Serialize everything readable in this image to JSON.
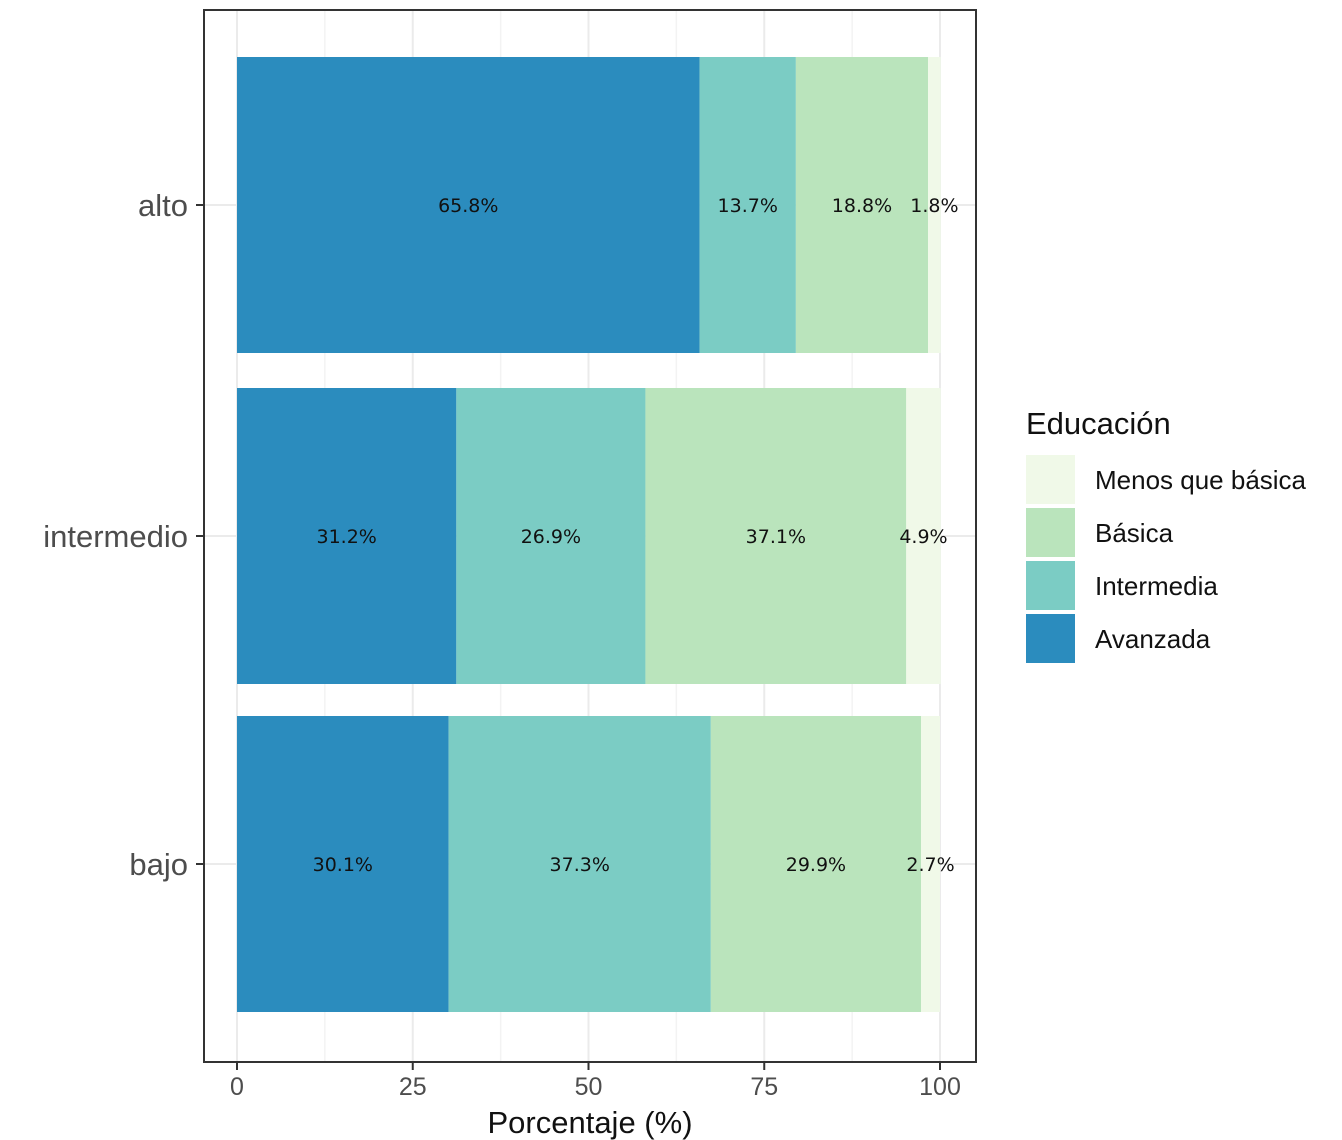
{
  "chart_data": {
    "type": "bar",
    "orientation": "horizontal",
    "stacked": true,
    "title": "",
    "xlabel": "Porcentaje (%)",
    "ylabel": "",
    "xlim": [
      0,
      100
    ],
    "x_ticks": [
      "0",
      "25",
      "50",
      "75",
      "100"
    ],
    "categories": [
      "alto",
      "intermedio",
      "bajo"
    ],
    "series": [
      {
        "name": "Avanzada",
        "color": "#2b8cbe",
        "values": [
          65.8,
          31.2,
          30.1
        ],
        "labels": [
          "65.8%",
          "31.2%",
          "30.1%"
        ]
      },
      {
        "name": "Intermedia",
        "color": "#7bccc4",
        "values": [
          13.7,
          26.9,
          37.3
        ],
        "labels": [
          "13.7%",
          "26.9%",
          "37.3%"
        ]
      },
      {
        "name": "Básica",
        "color": "#bae4bc",
        "values": [
          18.8,
          37.1,
          29.9
        ],
        "labels": [
          "18.8%",
          "37.1%",
          "29.9%"
        ]
      },
      {
        "name": "Menos que básica",
        "color": "#f0f9e8",
        "values": [
          1.8,
          4.9,
          2.7
        ],
        "labels": [
          "1.8%",
          "4.9%",
          "2.7%"
        ]
      }
    ],
    "legend": {
      "title": "Educación",
      "position": "right",
      "order": [
        "Menos que básica",
        "Básica",
        "Intermedia",
        "Avanzada"
      ]
    },
    "grid": true
  }
}
